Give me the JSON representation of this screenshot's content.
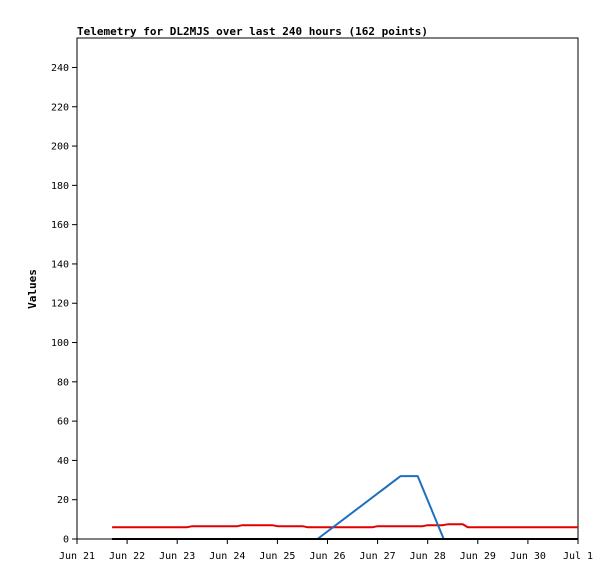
{
  "chart_data": {
    "type": "line",
    "title": "Telemetry for DL2MJS over last 240 hours (162 points)",
    "xlabel": "",
    "ylabel": "Values",
    "xlim": [
      "Jun 21",
      "Jul 1"
    ],
    "ylim": [
      0,
      255
    ],
    "x_ticks": [
      "Jun 21",
      "Jun 22",
      "Jun 23",
      "Jun 24",
      "Jun 25",
      "Jun 26",
      "Jun 27",
      "Jun 28",
      "Jun 29",
      "Jun 30",
      "Jul 1"
    ],
    "y_ticks": [
      0,
      20,
      40,
      60,
      80,
      100,
      120,
      140,
      160,
      180,
      200,
      220,
      240
    ],
    "grid": false,
    "legend": "none",
    "series": [
      {
        "color": "#e00000",
        "points": [
          [
            0.7,
            6
          ],
          [
            2.2,
            6
          ],
          [
            2.3,
            6.5
          ],
          [
            3.2,
            6.5
          ],
          [
            3.3,
            7
          ],
          [
            3.9,
            7
          ],
          [
            4.0,
            6.5
          ],
          [
            4.5,
            6.5
          ],
          [
            4.6,
            6
          ],
          [
            5.9,
            6
          ],
          [
            6.0,
            6.5
          ],
          [
            6.9,
            6.5
          ],
          [
            7.0,
            7
          ],
          [
            7.3,
            7
          ],
          [
            7.4,
            7.5
          ],
          [
            7.7,
            7.5
          ],
          [
            7.8,
            6
          ],
          [
            10.0,
            6
          ]
        ]
      },
      {
        "color": "#1f6fbf",
        "points": [
          [
            4.8,
            0
          ],
          [
            6.46,
            32
          ],
          [
            6.8,
            32
          ],
          [
            7.32,
            0
          ]
        ]
      },
      {
        "color": "#000000",
        "points": [
          [
            0.7,
            0
          ],
          [
            10.0,
            0
          ]
        ]
      }
    ]
  }
}
